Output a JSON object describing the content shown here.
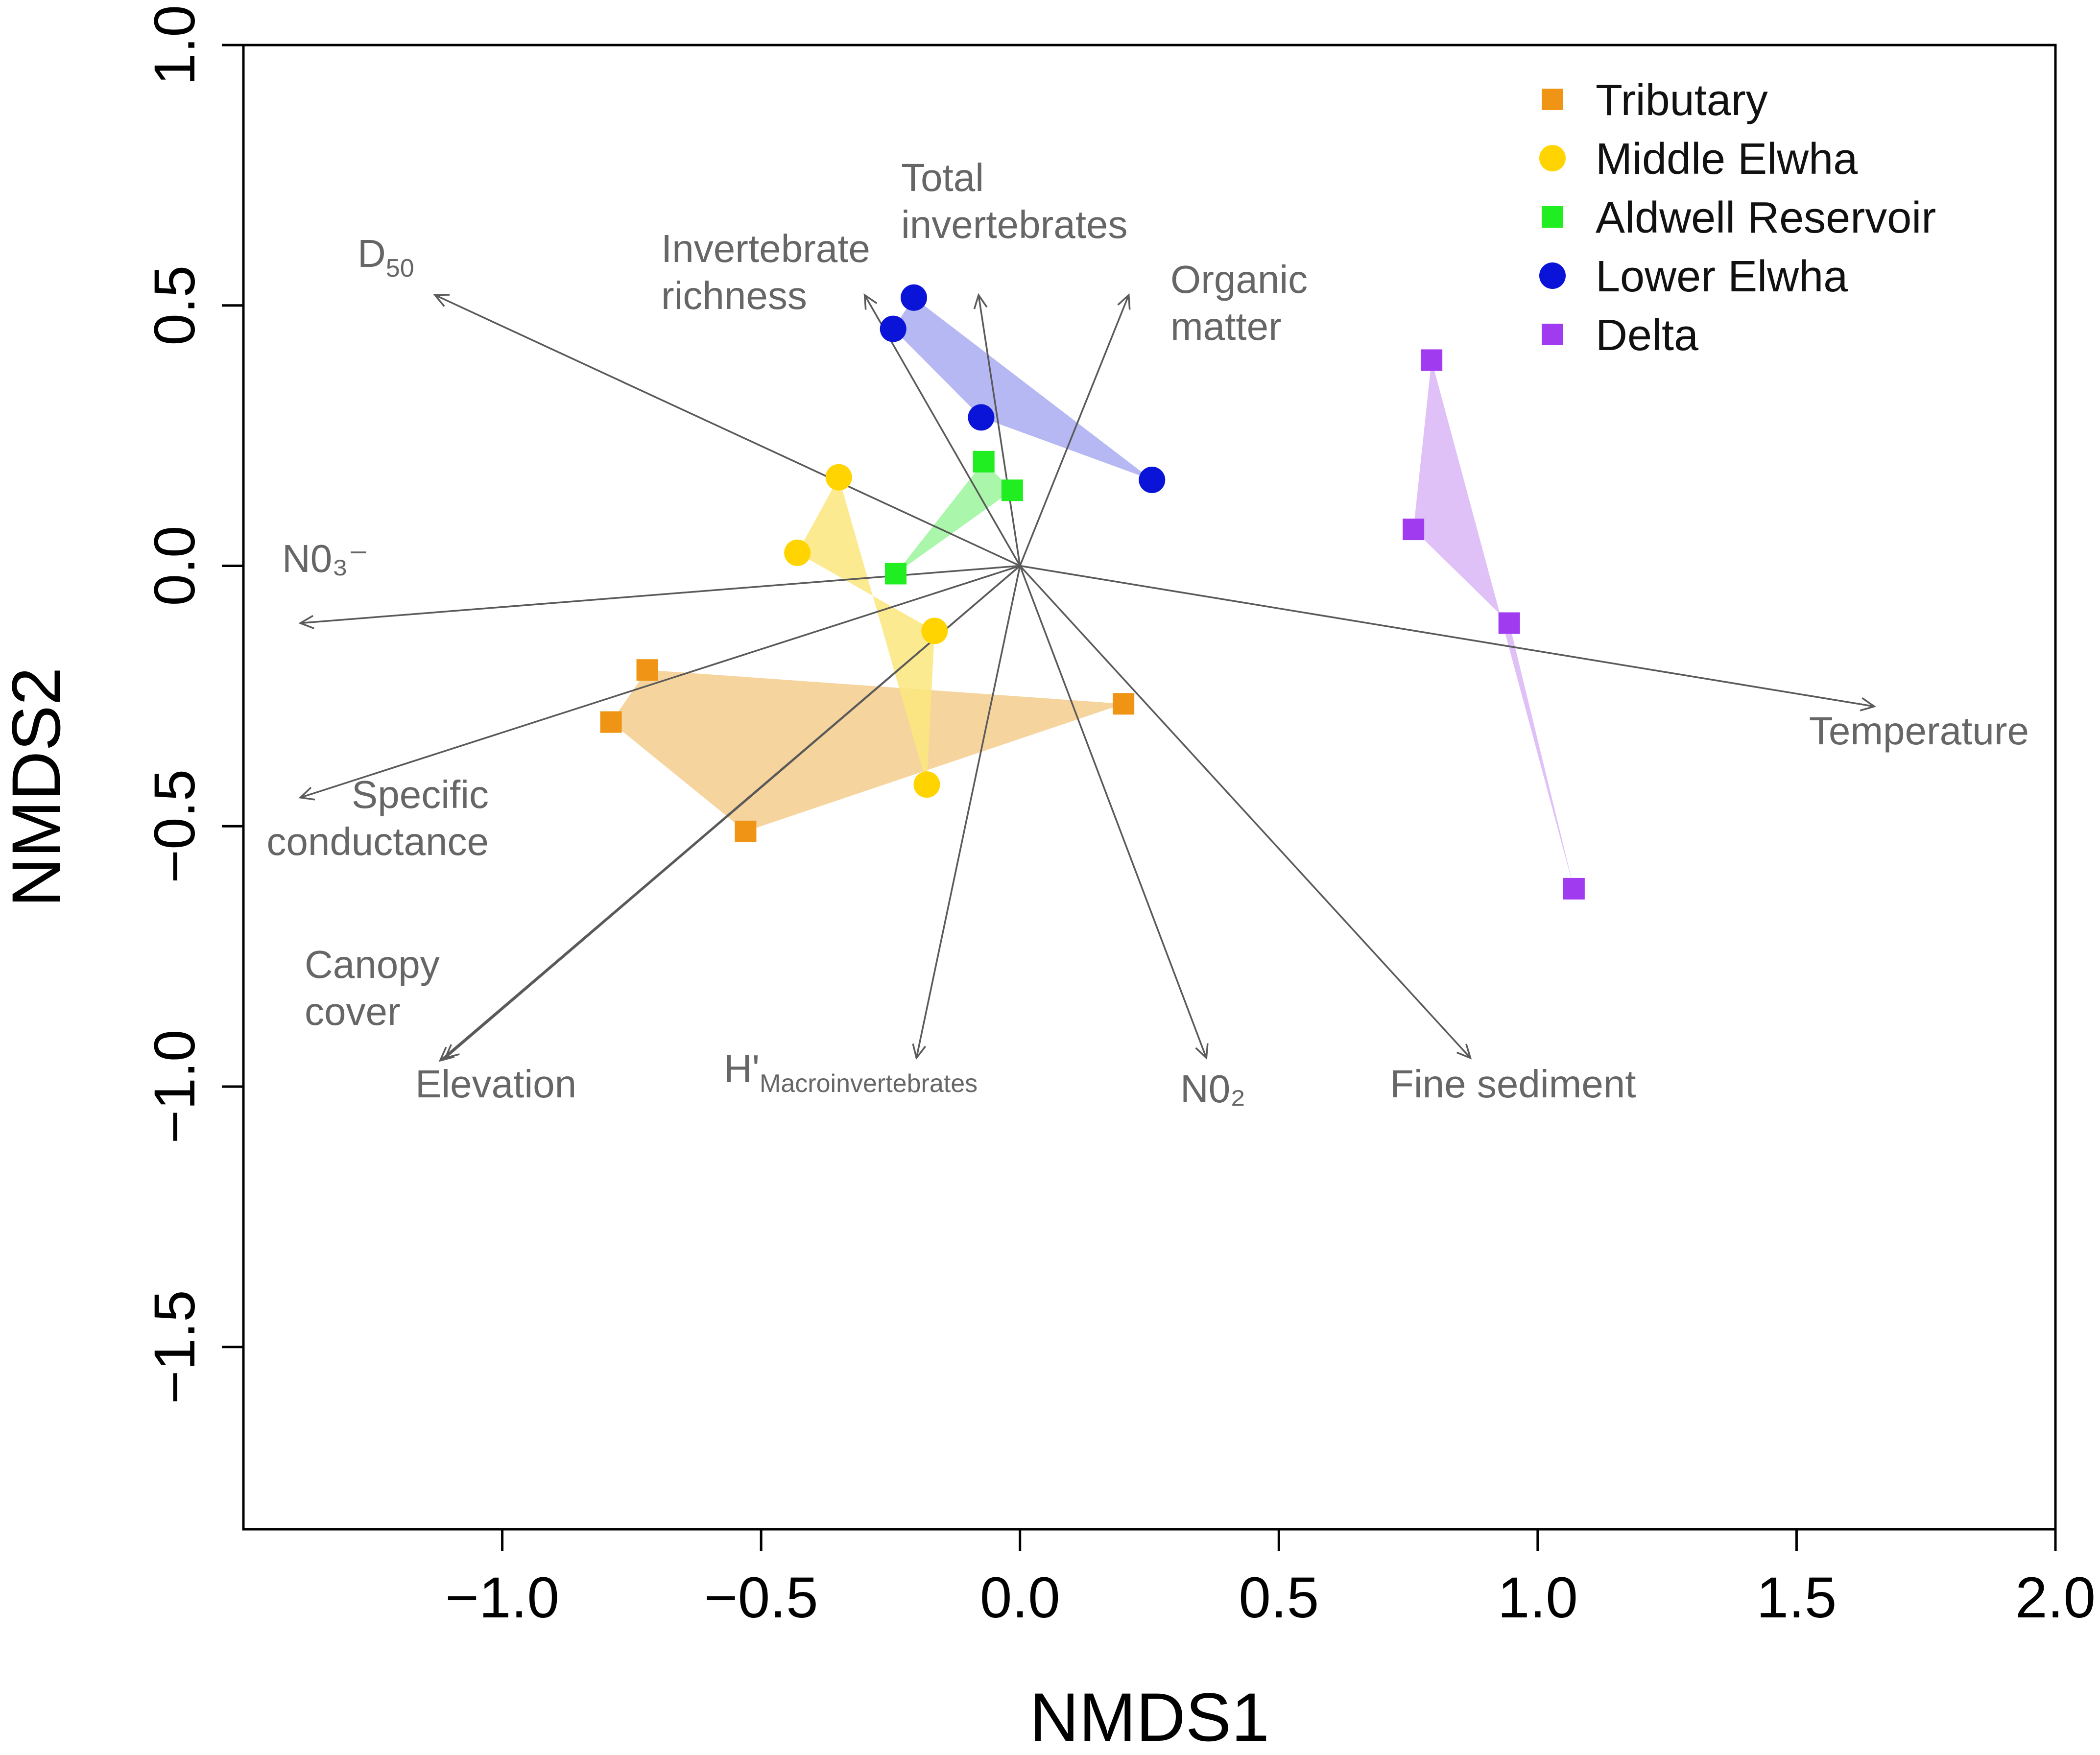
{
  "chart_data": {
    "type": "scatter",
    "xlabel": "NMDS1",
    "ylabel": "NMDS2",
    "xlim": [
      -1.5,
      2.0
    ],
    "ylim": [
      -1.85,
      1.0
    ],
    "xticks": [
      {
        "value": -1.0,
        "label": "−1.0"
      },
      {
        "value": -0.5,
        "label": "−0.5"
      },
      {
        "value": 0.0,
        "label": "0.0"
      },
      {
        "value": 0.5,
        "label": "0.5"
      },
      {
        "value": 1.0,
        "label": "1.0"
      },
      {
        "value": 1.5,
        "label": "1.5"
      },
      {
        "value": 2.0,
        "label": "2.0"
      }
    ],
    "yticks": [
      {
        "value": 1.0,
        "label": "1.0"
      },
      {
        "value": 0.5,
        "label": "0.5"
      },
      {
        "value": 0.0,
        "label": "0.0"
      },
      {
        "value": -0.5,
        "label": "−0.5"
      },
      {
        "value": -1.0,
        "label": "−1.0"
      },
      {
        "value": -1.5,
        "label": "−1.5"
      }
    ],
    "legend_position": "top-right",
    "series": [
      {
        "name": "Tributary",
        "marker": "square",
        "color": "#ef9414",
        "hull_color": "#f5cc8d",
        "points": [
          [
            -0.72,
            -0.2
          ],
          [
            -0.79,
            -0.3
          ],
          [
            -0.53,
            -0.51
          ],
          [
            0.2,
            -0.265
          ]
        ]
      },
      {
        "name": "Middle Elwha",
        "marker": "circle",
        "color": "#ffd400",
        "hull_color": "#fbe67c",
        "points": [
          [
            -0.35,
            0.17
          ],
          [
            -0.43,
            0.025
          ],
          [
            -0.165,
            -0.125
          ],
          [
            -0.18,
            -0.42
          ]
        ]
      },
      {
        "name": "Aldwell Reservoir",
        "marker": "square",
        "color": "#21ee21",
        "hull_color": "#9bf49b",
        "points": [
          [
            -0.07,
            0.2
          ],
          [
            -0.015,
            0.145
          ],
          [
            -0.24,
            -0.015
          ]
        ]
      },
      {
        "name": "Lower Elwha",
        "marker": "circle",
        "color": "#0a14d8",
        "hull_color": "#a8abf0",
        "points": [
          [
            -0.205,
            0.515
          ],
          [
            -0.245,
            0.455
          ],
          [
            -0.075,
            0.285
          ],
          [
            0.255,
            0.165
          ]
        ]
      },
      {
        "name": "Delta",
        "marker": "square",
        "color": "#a13bf0",
        "hull_color": "#d9b6f7",
        "points": [
          [
            0.795,
            0.395
          ],
          [
            0.76,
            0.07
          ],
          [
            0.945,
            -0.11
          ],
          [
            1.07,
            -0.62
          ]
        ]
      }
    ],
    "vectors": [
      {
        "name": "d50",
        "x": -1.13,
        "y": 0.52,
        "label_lines": [
          "D"
        ],
        "sub": "50"
      },
      {
        "name": "invertebrate-richness",
        "x": -0.3,
        "y": 0.52,
        "label_lines": [
          "Invertebrate",
          "richness"
        ]
      },
      {
        "name": "total-invertebrates",
        "x": -0.08,
        "y": 0.52,
        "label_lines": [
          "Total",
          "invertebrates"
        ]
      },
      {
        "name": "organic-matter",
        "x": 0.21,
        "y": 0.52,
        "label_lines": [
          "Organic",
          "matter"
        ]
      },
      {
        "name": "no3",
        "x": -1.39,
        "y": -0.11,
        "label_lines": [
          "N0₃⁻"
        ]
      },
      {
        "name": "temperature",
        "x": 1.65,
        "y": -0.27,
        "label_lines": [
          "Temperature"
        ]
      },
      {
        "name": "specific-conductance",
        "x": -1.39,
        "y": -0.445,
        "label_lines": [
          "Specific",
          "conductance"
        ]
      },
      {
        "name": "canopy-cover",
        "x": -1.12,
        "y": -0.95,
        "label_lines": [
          "Canopy",
          "cover"
        ]
      },
      {
        "name": "elevation",
        "x": -1.11,
        "y": -0.945,
        "label_lines": [
          "Elevation"
        ]
      },
      {
        "name": "h-macroinvertebrates",
        "x": -0.2,
        "y": -0.945,
        "label_lines": [
          "H'"
        ],
        "sub": "Macroinvertebrates"
      },
      {
        "name": "no2",
        "x": 0.36,
        "y": -0.945,
        "label_lines": [
          "N0₂"
        ]
      },
      {
        "name": "fine-sediment",
        "x": 0.87,
        "y": -0.945,
        "label_lines": [
          "Fine sediment"
        ]
      }
    ]
  }
}
